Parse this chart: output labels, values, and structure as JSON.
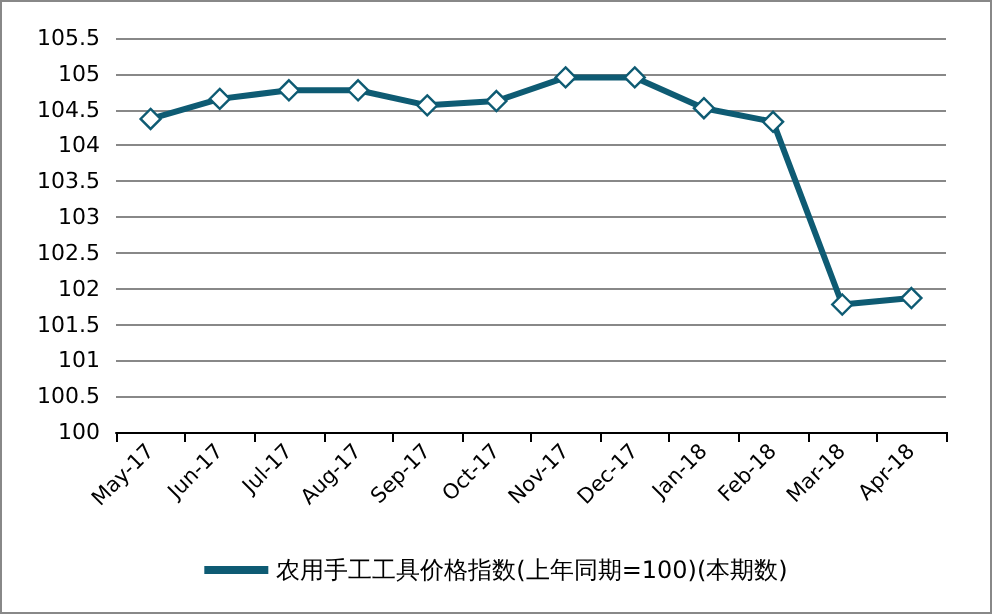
{
  "chart_data": {
    "type": "line",
    "categories": [
      "May-17",
      "Jun-17",
      "Jul-17",
      "Aug-17",
      "Sep-17",
      "Oct-17",
      "Nov-17",
      "Dec-17",
      "Jan-18",
      "Feb-18",
      "Mar-18",
      "Apr-18"
    ],
    "series": [
      {
        "name": "农用手工工具价格指数(上年同期=100)(本期数)",
        "color": "#0e5b73",
        "values": [
          104.37,
          104.65,
          104.77,
          104.77,
          104.56,
          104.62,
          104.95,
          104.95,
          104.52,
          104.33,
          101.78,
          101.87
        ]
      }
    ],
    "ylim": [
      100,
      105.5
    ],
    "yticks": [
      100,
      100.5,
      101,
      101.5,
      102,
      102.5,
      103,
      103.5,
      104,
      104.5,
      105,
      105.5
    ],
    "grid": "y",
    "legend": "bottom",
    "marker": "diamond",
    "line_style": "solid"
  }
}
